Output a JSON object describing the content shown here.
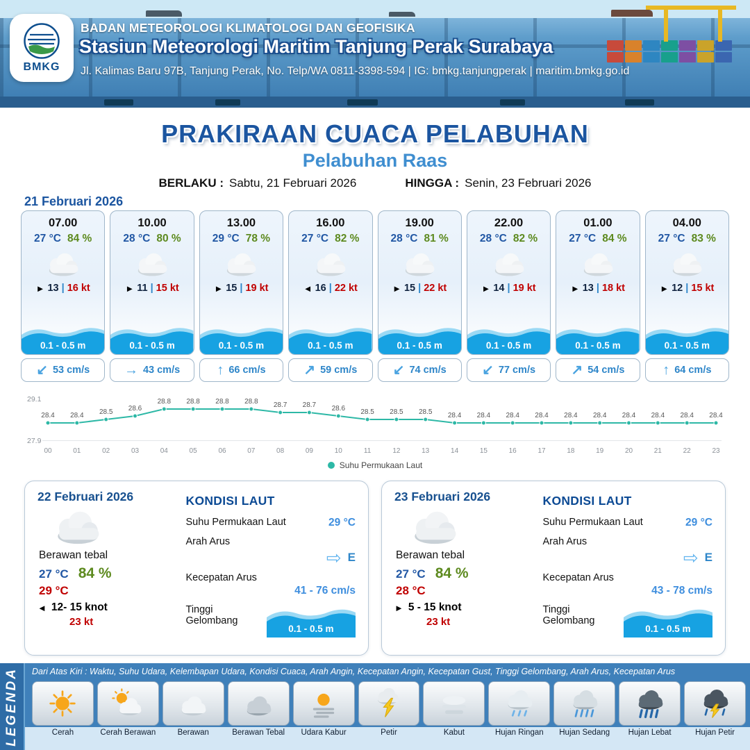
{
  "header": {
    "logo_text": "BMKG",
    "org": "BADAN METEOROLOGI KLIMATOLOGI DAN GEOFISIKA",
    "station": "Stasiun Meteorologi Maritim Tanjung Perak Surabaya",
    "address": "Jl. Kalimas Baru 97B, Tanjung Perak, No. Telp/WA 0811-3398-594 | IG: bmkg.tanjungperak | maritim.bmkg.go.id"
  },
  "title": {
    "main": "PRAKIRAAN CUACA PELABUHAN",
    "sub": "Pelabuhan Raas",
    "berlaku_label": "BERLAKU :",
    "berlaku_value": "Sabtu, 21 Februari 2026",
    "hingga_label": "HINGGA :",
    "hingga_value": "Senin, 23 Februari 2026"
  },
  "ui": {
    "wind_sep": "|"
  },
  "day1": {
    "date": "21 Februari 2026",
    "cards": [
      {
        "time": "07.00",
        "temp": "27 °C",
        "rh": "84 %",
        "wind_icon": "►",
        "wind": "13",
        "gust": "16 kt",
        "wave": "0.1 - 0.5 m",
        "cur_icon": "↙",
        "current": "53 cm/s"
      },
      {
        "time": "10.00",
        "temp": "28 °C",
        "rh": "80 %",
        "wind_icon": "►",
        "wind": "11",
        "gust": "15 kt",
        "wave": "0.1 - 0.5 m",
        "cur_icon": "→",
        "current": "43 cm/s"
      },
      {
        "time": "13.00",
        "temp": "29 °C",
        "rh": "78 %",
        "wind_icon": "►",
        "wind": "15",
        "gust": "19 kt",
        "wave": "0.1 - 0.5 m",
        "cur_icon": "↑",
        "current": "66 cm/s"
      },
      {
        "time": "16.00",
        "temp": "27 °C",
        "rh": "82 %",
        "wind_icon": "◄",
        "wind": "16",
        "gust": "22 kt",
        "wave": "0.1 - 0.5 m",
        "cur_icon": "↗",
        "current": "59 cm/s"
      },
      {
        "time": "19.00",
        "temp": "28 °C",
        "rh": "81 %",
        "wind_icon": "►",
        "wind": "15",
        "gust": "22 kt",
        "wave": "0.1 - 0.5 m",
        "cur_icon": "↙",
        "current": "74 cm/s"
      },
      {
        "time": "22.00",
        "temp": "28 °C",
        "rh": "82 %",
        "wind_icon": "►",
        "wind": "14",
        "gust": "19 kt",
        "wave": "0.1 - 0.5 m",
        "cur_icon": "↙",
        "current": "77 cm/s"
      },
      {
        "time": "01.00",
        "temp": "27 °C",
        "rh": "84 %",
        "wind_icon": "►",
        "wind": "13",
        "gust": "18 kt",
        "wave": "0.1 - 0.5 m",
        "cur_icon": "↗",
        "current": "54 cm/s"
      },
      {
        "time": "04.00",
        "temp": "27 °C",
        "rh": "83 %",
        "wind_icon": "►",
        "wind": "12",
        "gust": "15 kt",
        "wave": "0.1 - 0.5 m",
        "cur_icon": "↑",
        "current": "64 cm/s"
      }
    ]
  },
  "chart_data": {
    "type": "line",
    "x": [
      "00",
      "01",
      "02",
      "03",
      "04",
      "05",
      "06",
      "07",
      "08",
      "09",
      "10",
      "11",
      "12",
      "13",
      "14",
      "15",
      "16",
      "17",
      "18",
      "19",
      "20",
      "21",
      "22",
      "23"
    ],
    "series": [
      {
        "name": "Suhu Permukaan Laut",
        "values": [
          28.4,
          28.4,
          28.5,
          28.6,
          28.8,
          28.8,
          28.8,
          28.8,
          28.7,
          28.7,
          28.6,
          28.5,
          28.5,
          28.5,
          28.4,
          28.4,
          28.4,
          28.4,
          28.4,
          28.4,
          28.4,
          28.4,
          28.4,
          28.4
        ]
      }
    ],
    "ylim": [
      27.9,
      29.1
    ],
    "color": "#2db8a6",
    "grid": false,
    "legend_position": "bottom"
  },
  "day_cards": [
    {
      "date": "22 Februari 2026",
      "condition": "Berawan tebal",
      "temp": "27 °C",
      "rh": "84 %",
      "temp2": "29 °C",
      "wind_icon": "◄",
      "wind": "12- 15 knot",
      "gust": "23 kt",
      "sea": {
        "heading": "KONDISI LAUT",
        "sst_label": "Suhu Permukaan Laut",
        "sst": "29 °C",
        "current_dir_label": "Arah Arus",
        "current_dir_icon": "⇨",
        "current_dir": "E",
        "current_speed_label": "Kecepatan Arus",
        "current_speed": "41 - 76 cm/s",
        "wave_label": "Tinggi Gelombang",
        "wave": "0.1 - 0.5 m"
      }
    },
    {
      "date": "23 Februari 2026",
      "condition": "Berawan tebal",
      "temp": "27 °C",
      "rh": "84 %",
      "temp2": "28 °C",
      "wind_icon": "►",
      "wind": "5 - 15 knot",
      "gust": "23 kt",
      "sea": {
        "heading": "KONDISI LAUT",
        "sst_label": "Suhu Permukaan Laut",
        "sst": "29 °C",
        "current_dir_label": "Arah Arus",
        "current_dir_icon": "⇨",
        "current_dir": "E",
        "current_speed_label": "Kecepatan Arus",
        "current_speed": "43 - 78 cm/s",
        "wave_label": "Tinggi Gelombang",
        "wave": "0.1 - 0.5 m"
      }
    }
  ],
  "legend": {
    "title": "LEGENDA",
    "desc": "Dari Atas Kiri : Waktu, Suhu Udara, Kelembapan Udara, Kondisi Cuaca, Arah Angin, Kecepatan Angin, Kecepatan Gust, Tinggi Gelombang, Arah Arus, Kecepatan Arus",
    "items": [
      {
        "label": "Cerah",
        "icon": "sun"
      },
      {
        "label": "Cerah Berawan",
        "icon": "sun-cloud"
      },
      {
        "label": "Berawan",
        "icon": "cloud"
      },
      {
        "label": "Berawan Tebal",
        "icon": "cloud-dark"
      },
      {
        "label": "Udara Kabur",
        "icon": "haze"
      },
      {
        "label": "Petir",
        "icon": "lightning"
      },
      {
        "label": "Kabut",
        "icon": "fog"
      },
      {
        "label": "Hujan Ringan",
        "icon": "rain-light"
      },
      {
        "label": "Hujan Sedang",
        "icon": "rain-medium"
      },
      {
        "label": "Hujan Lebat",
        "icon": "rain-heavy"
      },
      {
        "label": "Hujan Petir",
        "icon": "storm"
      }
    ]
  }
}
